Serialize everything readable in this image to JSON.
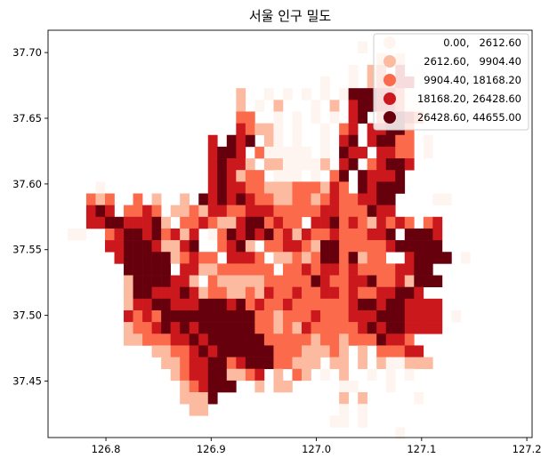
{
  "title": "서울 인구 밀도",
  "chart_data": {
    "type": "heatmap",
    "title": "서울 인구 밀도",
    "xlabel": "",
    "ylabel": "",
    "xlim": [
      126.745,
      127.205
    ],
    "ylim": [
      37.407,
      37.717
    ],
    "x_ticks": [
      {
        "value": 126.8,
        "label": "126.8"
      },
      {
        "value": 126.9,
        "label": "126.9"
      },
      {
        "value": 127.0,
        "label": "127.0"
      },
      {
        "value": 127.1,
        "label": "127.1"
      },
      {
        "value": 127.2,
        "label": "127.2"
      }
    ],
    "y_ticks": [
      {
        "value": 37.45,
        "label": "37.45"
      },
      {
        "value": 37.5,
        "label": "37.50"
      },
      {
        "value": 37.55,
        "label": "37.55"
      },
      {
        "value": 37.6,
        "label": "37.60"
      },
      {
        "value": 37.65,
        "label": "37.65"
      },
      {
        "value": 37.7,
        "label": "37.70"
      }
    ],
    "legend_position": "top-right",
    "classes": [
      {
        "label": "     0.00,   2612.60",
        "color": "#fff5f0"
      },
      {
        "label": " 2612.60,   9904.40",
        "color": "#fcbba1"
      },
      {
        "label": " 9904.40, 18168.20",
        "color": "#fb6a4a"
      },
      {
        "label": "18168.20, 26428.60",
        "color": "#cb181d"
      },
      {
        "label": "26428.60, 44655.00",
        "color": "#67000d"
      }
    ],
    "grid": {
      "lon0": 126.7635,
      "lat_top": 37.7085,
      "cell_deg": 0.0089,
      "rows": [
        "...............................0...............",
        ".................................1.1............",
        "..............................0.12.3.0.........",
        "...........................0..0.12233........",
        "..................1..0.0.0.0.04443320..........",
        "..................1.0.1...0.1.34433200.........",
        "..................22..0.0.0.0.34.234320.........",
        "..................32110.0..0.23.33442..........",
        "...............3.434.10.0..0.34.34422.0........",
        "...............3443.200000.0.433.3322.0........",
        "...............34331.1100001.34.23443..........",
        "...............343122.000.0.24.43334...........",
        "...0...........343322111222132.43444...........",
        "..212..2.1..1.434343221122123223344....00......",
        "..343.2232.112133223332222233222433............",
        "..334433341.2232113442322.33423213232.23.......",
        "00..2344342313.02434342313223222334.4443.......",
        "....3344431134..2341.2233214422222344444.......",
        ".....34444412322.3332.112124424122..34444.0....",
        "......44444.3311222222.2232332322223344........",
        "......14444331.2111112222243223342231444.......",
        "......14433343122112132232233232233443.........",
        "......1334433344434232232222223443443333.......",
        "......3232444444444422122232223334443333.0.....",
        "......1223434344444422121322222343443333.......",
        "......1122233434444442222212212224332..........",
        ".........112234344444422211121.1.22233.........",
        "..........11233442344422111.11.1.100111........",
        "...........1233441123.1.21.0.1..0.0.0..........",
        "............123444..1.11.....00...0............",
        "............1114.............1.1.....0.........",
        ".............11..............0.0...............",
        "............................00.0...............",
        "...................................0..........."
      ]
    }
  }
}
